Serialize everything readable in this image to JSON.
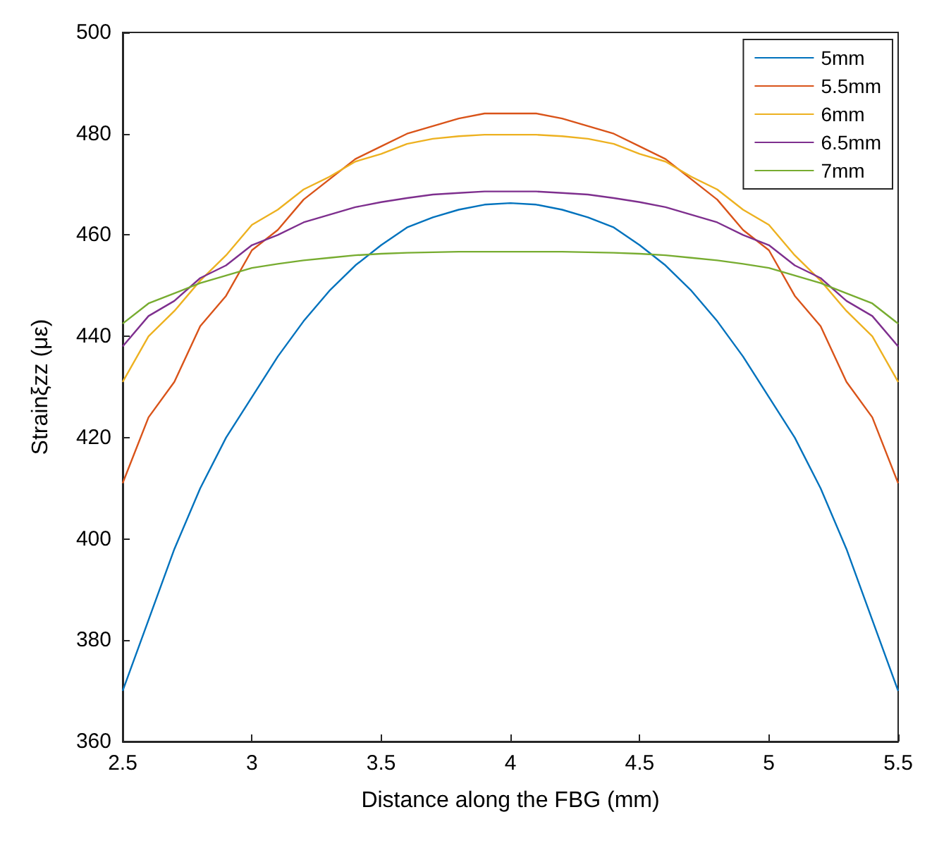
{
  "chart_data": {
    "type": "line",
    "xlabel": "Distance along the FBG (mm)",
    "ylabel": "Strainξzz (με)",
    "x": [
      2.5,
      2.6,
      2.7,
      2.8,
      2.9,
      3.0,
      3.1,
      3.2,
      3.3,
      3.4,
      3.5,
      3.6,
      3.7,
      3.8,
      3.9,
      4.0,
      4.1,
      4.2,
      4.3,
      4.4,
      4.5,
      4.6,
      4.7,
      4.8,
      4.9,
      5.0,
      5.1,
      5.2,
      5.3,
      5.4,
      5.5
    ],
    "series": [
      {
        "name": "5mm",
        "color": "#0072bd",
        "values": [
          370,
          384,
          398,
          410,
          420,
          428,
          436,
          443,
          449,
          454,
          458,
          461.5,
          463.5,
          465,
          466,
          466.3,
          466,
          465,
          463.5,
          461.5,
          458,
          454,
          449,
          443,
          436,
          428,
          420,
          410,
          398,
          384,
          370
        ]
      },
      {
        "name": "5.5mm",
        "color": "#d95319",
        "values": [
          411,
          424,
          431,
          442,
          448,
          457,
          461,
          467,
          471,
          475,
          477.5,
          480,
          481.5,
          483,
          484,
          484,
          484,
          483,
          481.5,
          480,
          477.5,
          475,
          471,
          467,
          461,
          457,
          448,
          442,
          431,
          424,
          411
        ]
      },
      {
        "name": "6mm",
        "color": "#edb120",
        "values": [
          431,
          440,
          445,
          451,
          456,
          462,
          465,
          469,
          471.5,
          474.5,
          476,
          478,
          479,
          479.5,
          479.8,
          479.8,
          479.8,
          479.5,
          479,
          478,
          476,
          474.5,
          471.5,
          469,
          465,
          462,
          456,
          451,
          445,
          440,
          431
        ]
      },
      {
        "name": "6.5mm",
        "color": "#7e2f8e",
        "values": [
          438,
          444,
          447,
          451.5,
          454,
          458,
          460,
          462.5,
          464,
          465.5,
          466.5,
          467.3,
          468,
          468.3,
          468.6,
          468.6,
          468.6,
          468.3,
          468,
          467.3,
          466.5,
          465.5,
          464,
          462.5,
          460,
          458,
          454,
          451.5,
          447,
          444,
          438
        ]
      },
      {
        "name": "7mm",
        "color": "#77ac30",
        "values": [
          442.5,
          446.5,
          448.5,
          450.5,
          452,
          453.5,
          454.3,
          455,
          455.5,
          456,
          456.3,
          456.5,
          456.6,
          456.7,
          456.7,
          456.7,
          456.7,
          456.7,
          456.6,
          456.5,
          456.3,
          456,
          455.5,
          455,
          454.3,
          453.5,
          452,
          450.5,
          448.5,
          446.5,
          442.5
        ]
      }
    ],
    "xlim": [
      2.5,
      5.5
    ],
    "xticks": [
      2.5,
      3,
      3.5,
      4,
      4.5,
      5,
      5.5
    ],
    "ylim": [
      360,
      500
    ],
    "yticks": [
      360,
      380,
      400,
      420,
      440,
      460,
      480,
      500
    ],
    "grid": false,
    "legend": "top right",
    "marker": "none",
    "line_style": "solid"
  }
}
